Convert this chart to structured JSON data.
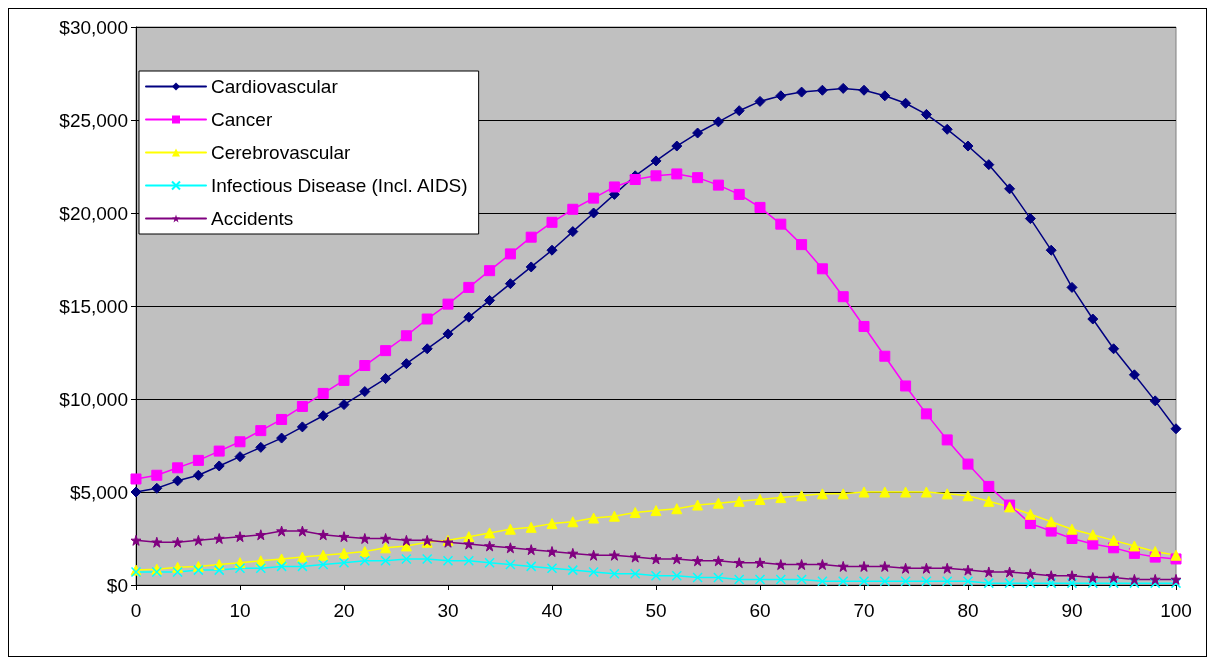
{
  "chart_data": {
    "type": "line",
    "x": [
      0,
      2,
      4,
      6,
      8,
      10,
      12,
      14,
      16,
      18,
      20,
      22,
      24,
      26,
      28,
      30,
      32,
      34,
      36,
      38,
      40,
      42,
      44,
      46,
      48,
      50,
      52,
      54,
      56,
      58,
      60,
      62,
      64,
      66,
      68,
      70,
      72,
      74,
      76,
      78,
      80,
      82,
      84,
      86,
      88,
      90,
      92,
      94,
      96,
      98,
      100
    ],
    "series": [
      {
        "name": "Cardiovascular",
        "color": "#000080",
        "marker": "diamond",
        "values": [
          5000,
          5200,
          5600,
          5900,
          6400,
          6900,
          7400,
          7900,
          8500,
          9100,
          9700,
          10400,
          11100,
          11900,
          12700,
          13500,
          14400,
          15300,
          16200,
          17100,
          18000,
          19000,
          20000,
          21000,
          22000,
          22800,
          23600,
          24300,
          24900,
          25500,
          26000,
          26300,
          26500,
          26600,
          26700,
          26600,
          26300,
          25900,
          25300,
          24500,
          23600,
          22600,
          21300,
          19700,
          18000,
          16000,
          14300,
          12700,
          11300,
          9900,
          8400
        ]
      },
      {
        "name": "Cancer",
        "color": "#ff00ff",
        "marker": "square",
        "values": [
          5700,
          5900,
          6300,
          6700,
          7200,
          7700,
          8300,
          8900,
          9600,
          10300,
          11000,
          11800,
          12600,
          13400,
          14300,
          15100,
          16000,
          16900,
          17800,
          18700,
          19500,
          20200,
          20800,
          21400,
          21800,
          22000,
          22100,
          21900,
          21500,
          21000,
          20300,
          19400,
          18300,
          17000,
          15500,
          13900,
          12300,
          10700,
          9200,
          7800,
          6500,
          5300,
          4300,
          3300,
          2900,
          2500,
          2200,
          2000,
          1700,
          1500,
          1400
        ]
      },
      {
        "name": "Cerebrovascular",
        "color": "#ffff00",
        "marker": "triangle",
        "values": [
          800,
          850,
          950,
          1000,
          1100,
          1200,
          1300,
          1400,
          1500,
          1600,
          1700,
          1800,
          2000,
          2100,
          2300,
          2400,
          2600,
          2800,
          3000,
          3100,
          3300,
          3400,
          3600,
          3700,
          3900,
          4000,
          4100,
          4300,
          4400,
          4500,
          4600,
          4700,
          4800,
          4900,
          4900,
          5000,
          5000,
          5000,
          5000,
          4900,
          4800,
          4500,
          4200,
          3800,
          3400,
          3000,
          2700,
          2400,
          2100,
          1800,
          1600
        ]
      },
      {
        "name": "Infectious Disease (Incl. AIDS)",
        "color": "#00ffff",
        "marker": "cross",
        "values": [
          700,
          700,
          700,
          800,
          800,
          900,
          900,
          1000,
          1000,
          1100,
          1200,
          1300,
          1300,
          1400,
          1400,
          1300,
          1300,
          1200,
          1100,
          1000,
          900,
          800,
          700,
          600,
          600,
          500,
          500,
          400,
          400,
          300,
          300,
          300,
          300,
          200,
          200,
          200,
          200,
          200,
          200,
          200,
          200,
          100,
          100,
          100,
          100,
          100,
          100,
          100,
          100,
          100,
          100
        ]
      },
      {
        "name": "Accidents",
        "color": "#800080",
        "marker": "star",
        "values": [
          2400,
          2300,
          2300,
          2400,
          2500,
          2600,
          2700,
          2900,
          2900,
          2700,
          2600,
          2500,
          2500,
          2400,
          2400,
          2300,
          2200,
          2100,
          2000,
          1900,
          1800,
          1700,
          1600,
          1600,
          1500,
          1400,
          1400,
          1300,
          1300,
          1200,
          1200,
          1100,
          1100,
          1100,
          1000,
          1000,
          1000,
          900,
          900,
          900,
          800,
          700,
          700,
          600,
          500,
          500,
          400,
          400,
          300,
          300,
          300
        ]
      }
    ],
    "xlim": [
      0,
      100
    ],
    "xticks": [
      0,
      10,
      20,
      30,
      40,
      50,
      60,
      70,
      80,
      90,
      100
    ],
    "ylim": [
      0,
      30000
    ],
    "yticks": [
      {
        "value": 0,
        "label": "$0"
      },
      {
        "value": 5000,
        "label": "$5,000"
      },
      {
        "value": 10000,
        "label": "$10,000"
      },
      {
        "value": 15000,
        "label": "$15,000"
      },
      {
        "value": 20000,
        "label": "$20,000"
      },
      {
        "value": 25000,
        "label": "$25,000"
      },
      {
        "value": 30000,
        "label": "$30,000"
      }
    ],
    "grid": "y",
    "legend": "top left",
    "line_style": "solid"
  }
}
